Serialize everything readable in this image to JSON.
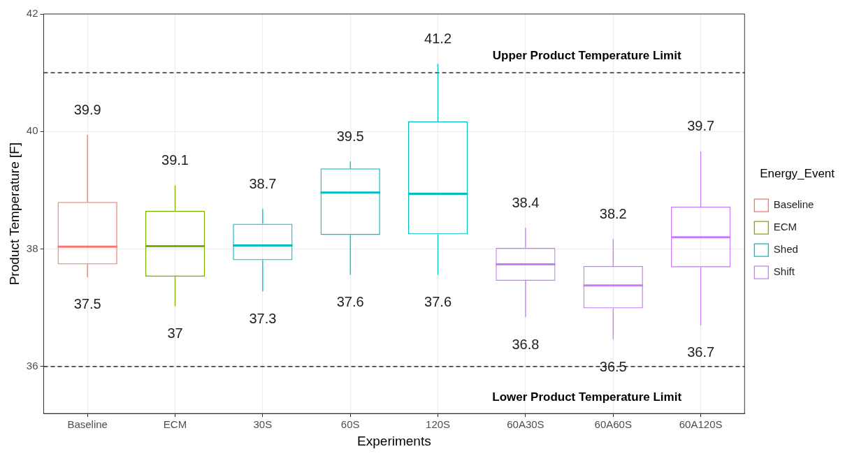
{
  "chart_data": {
    "type": "box",
    "xlabel": "Experiments",
    "ylabel": "Product Temperature [F]",
    "legend_title": "Energy_Event",
    "legend": "right",
    "grid": true,
    "categories": [
      "Baseline",
      "ECM",
      "30S",
      "60S",
      "120S",
      "60A30S",
      "60A60S",
      "60A120S"
    ],
    "ylim": [
      35.2,
      42
    ],
    "yticks": [
      36,
      38,
      40,
      42
    ],
    "series": [
      {
        "name": "Baseline",
        "color": "#f8766d",
        "boxes": [
          {
            "low": 37.52,
            "q1": 37.74,
            "median": 38.04,
            "q3": 38.8,
            "high": 39.94
          },
          null,
          null,
          null,
          null,
          null,
          null,
          null
        ]
      },
      {
        "name": "ECM",
        "color": "#7cae00",
        "boxes": [
          null,
          {
            "low": 37.03,
            "q1": 37.53,
            "median": 38.05,
            "q3": 38.65,
            "high": 39.08
          },
          null,
          null,
          null,
          null,
          null,
          null
        ]
      },
      {
        "name": "Shed",
        "color": "#00bfc4",
        "boxes": [
          null,
          null,
          {
            "low": 37.28,
            "q1": 37.81,
            "median": 38.06,
            "q3": 38.43,
            "high": 38.68
          },
          {
            "low": 37.56,
            "q1": 38.24,
            "median": 38.96,
            "q3": 39.37,
            "high": 39.49
          },
          {
            "low": 37.56,
            "q1": 38.25,
            "median": 38.94,
            "q3": 40.17,
            "high": 41.15
          },
          null,
          null,
          null
        ]
      },
      {
        "name": "Shift",
        "color": "#c77cff",
        "boxes": [
          null,
          null,
          null,
          null,
          null,
          {
            "low": 36.84,
            "q1": 37.46,
            "median": 37.74,
            "q3": 38.02,
            "high": 38.36
          },
          {
            "low": 36.46,
            "q1": 36.99,
            "median": 37.38,
            "q3": 37.71,
            "high": 38.17
          },
          {
            "low": 36.7,
            "q1": 37.69,
            "median": 38.2,
            "q3": 38.72,
            "high": 39.66
          }
        ]
      }
    ],
    "ref_lines": [
      {
        "axis": "y",
        "value": 41,
        "label": "Upper Product Temperature Limit",
        "color": "#000000",
        "line_style": "dashed"
      },
      {
        "axis": "y",
        "value": 36,
        "label": "Lower Product Temperature Limit",
        "color": "#000000",
        "line_style": "dashed"
      }
    ],
    "annotations": [
      {
        "text": "39.9",
        "x": "Baseline",
        "y": 39.94
      },
      {
        "text": "37.5",
        "x": "Baseline",
        "y": 37.52
      },
      {
        "text": "39.1",
        "x": "ECM",
        "y": 39.08
      },
      {
        "text": "37",
        "x": "ECM",
        "y": 37.03
      },
      {
        "text": "38.7",
        "x": "30S",
        "y": 38.68
      },
      {
        "text": "37.3",
        "x": "30S",
        "y": 37.28
      },
      {
        "text": "39.5",
        "x": "60S",
        "y": 39.49
      },
      {
        "text": "37.6",
        "x": "60S",
        "y": 37.56
      },
      {
        "text": "41.2",
        "x": "120S",
        "y": 41.15
      },
      {
        "text": "37.6",
        "x": "120S",
        "y": 37.56
      },
      {
        "text": "38.4",
        "x": "60A30S",
        "y": 38.36
      },
      {
        "text": "36.8",
        "x": "60A30S",
        "y": 36.84
      },
      {
        "text": "38.2",
        "x": "60A60S",
        "y": 38.17
      },
      {
        "text": "36.5",
        "x": "60A60S",
        "y": 36.46
      },
      {
        "text": "39.7",
        "x": "60A120S",
        "y": 39.66
      },
      {
        "text": "36.7",
        "x": "60A120S",
        "y": 36.7
      }
    ]
  }
}
